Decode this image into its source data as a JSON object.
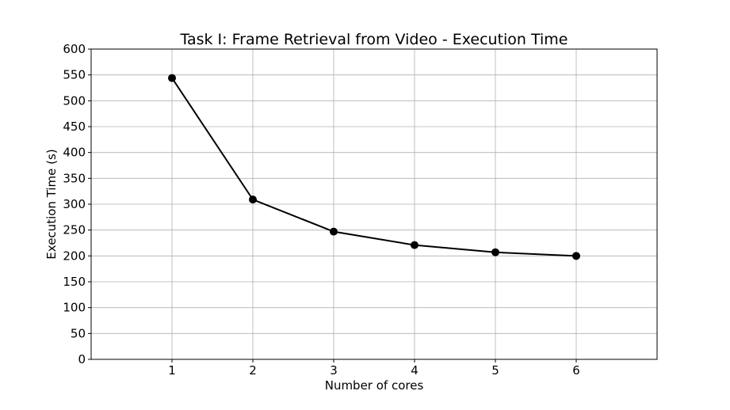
{
  "chart_data": {
    "type": "line",
    "title": "Task I: Frame Retrieval from Video - Execution Time",
    "xlabel": "Number of cores",
    "ylabel": "Execution Time (s)",
    "xlim": [
      0,
      7
    ],
    "ylim": [
      0,
      600
    ],
    "x_ticks": [
      1,
      2,
      3,
      4,
      5,
      6
    ],
    "y_ticks": [
      0,
      50,
      100,
      150,
      200,
      250,
      300,
      350,
      400,
      450,
      500,
      550,
      600
    ],
    "grid": true,
    "series": [
      {
        "x": [
          1,
          2,
          3,
          4,
          5,
          6
        ],
        "values": [
          544,
          309,
          247,
          221,
          207,
          200
        ],
        "color": "#000000",
        "marker": "circle"
      }
    ]
  }
}
